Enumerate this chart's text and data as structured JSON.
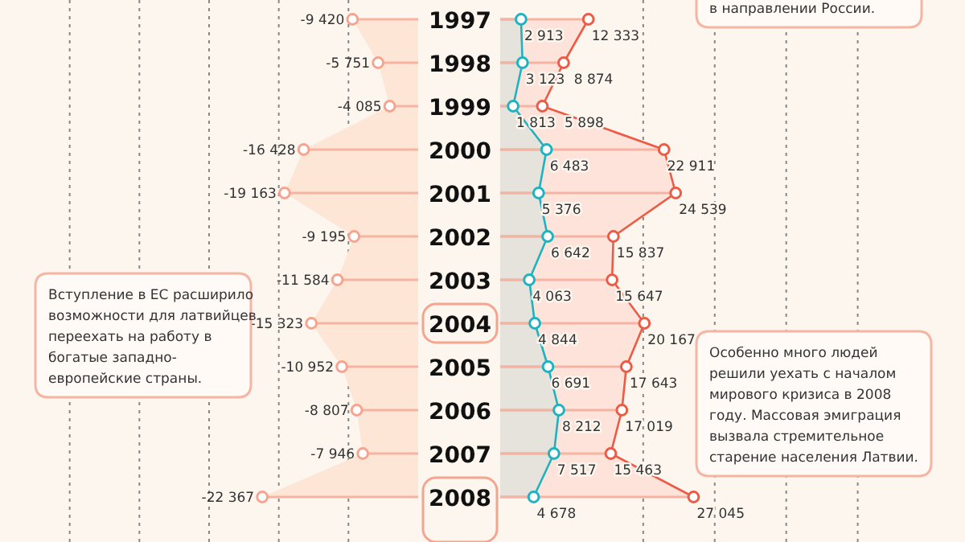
{
  "chart_data": [
    {
      "type": "area",
      "orientation": "horizontal",
      "categories": [
        "1997",
        "1998",
        "1999",
        "2000",
        "2001",
        "2002",
        "2003",
        "2004",
        "2005",
        "2006",
        "2007",
        "2008"
      ],
      "values": [
        -9420,
        -5751,
        -4085,
        -16428,
        -19163,
        -9195,
        -11584,
        -15323,
        -10952,
        -8807,
        -7946,
        -22367
      ],
      "color": "#f6a48e",
      "xlim": [
        -60000,
        0
      ],
      "xticks": [
        {
          "value": -50000,
          "label": null
        },
        {
          "value": -40000,
          "label": null
        },
        {
          "value": -30000,
          "label": null
        },
        {
          "value": -20000,
          "label": null
        },
        {
          "value": -10000,
          "label": null
        }
      ],
      "grid": "x",
      "marker": "circle",
      "data_labels": true,
      "annotations": [
        "Вступление в ЕС расширило возможности для латвийцев переехать на работу в богатые западно- европейские страны."
      ]
    },
    {
      "type": "area",
      "orientation": "horizontal",
      "categories": [
        "1997",
        "1998",
        "1999",
        "2000",
        "2001",
        "2002",
        "2003",
        "2004",
        "2005",
        "2006",
        "2007",
        "2008"
      ],
      "series": [
        {
          "color": "#1fb3bf",
          "values": [
            2913,
            3123,
            1813,
            6483,
            5376,
            6642,
            4063,
            4844,
            6691,
            8212,
            7517,
            4678
          ]
        },
        {
          "color": "#ec5b45",
          "values": [
            12333,
            8874,
            5898,
            22911,
            24539,
            15837,
            15647,
            20167,
            17643,
            17019,
            15463,
            27045
          ]
        }
      ],
      "xlim": [
        0,
        65000
      ],
      "xticks": [
        {
          "value": 20000,
          "label": null
        },
        {
          "value": 30000,
          "label": null
        },
        {
          "value": 40000,
          "label": null
        },
        {
          "value": 50000,
          "label": null
        }
      ],
      "grid": "x",
      "marker": "circle",
      "data_labels": true,
      "tick_labels": false,
      "annotations": [
        "в направлении России.",
        "Особенно много людей решили уехать с началом мирового кризиса в 2008 году. Массовая эмиграция вызвала стремительное старение населения Латвии."
      ]
    }
  ]
}
